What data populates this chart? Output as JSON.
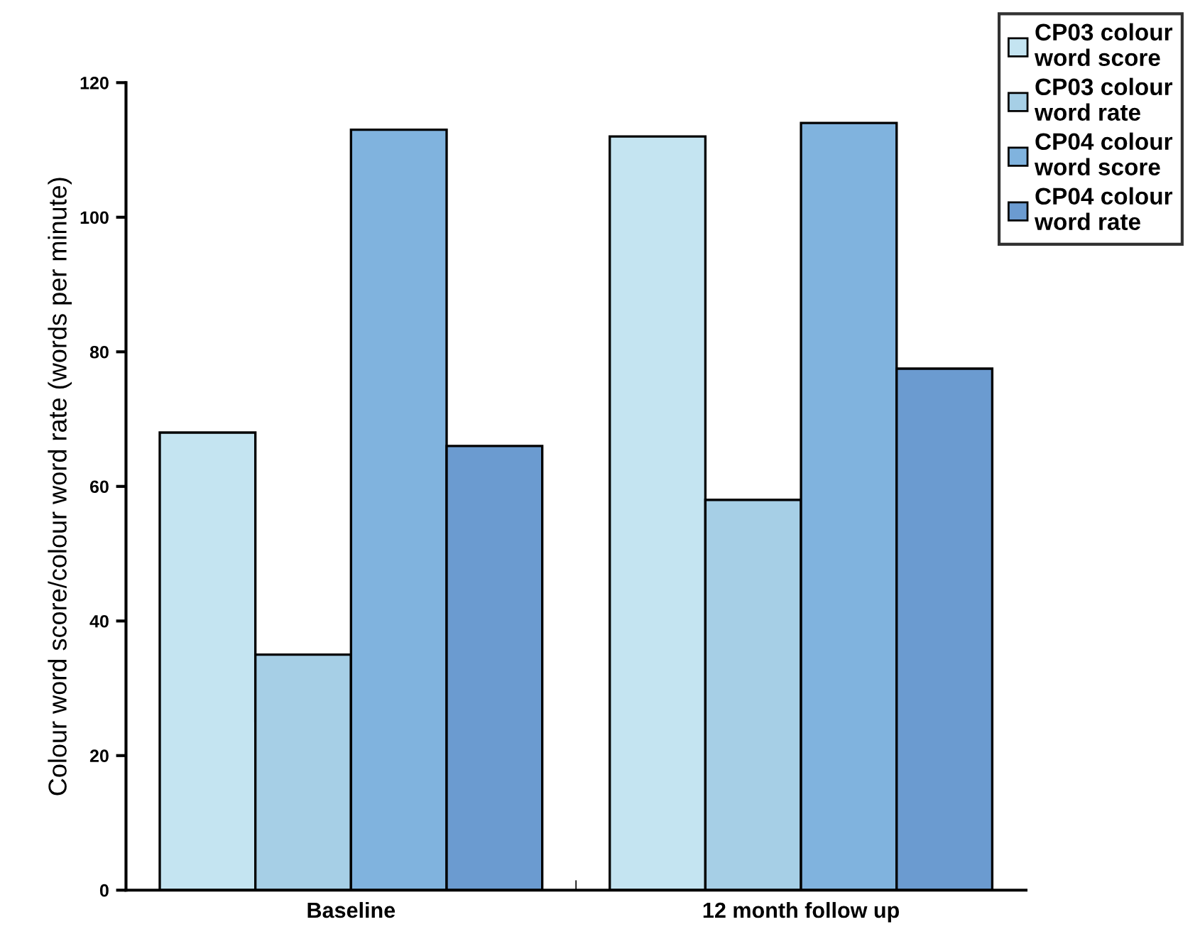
{
  "chart_data": {
    "type": "bar",
    "ylabel": "Colour word score/colour word rate (words per minute)",
    "categories": [
      "Baseline",
      "12 month follow up"
    ],
    "series": [
      {
        "name": "CP03 colour word score",
        "color": "#c4e4f1",
        "values": [
          68,
          112
        ]
      },
      {
        "name": "CP03 colour word rate",
        "color": "#a6cfe6",
        "values": [
          35,
          58
        ]
      },
      {
        "name": "CP04 colour word score",
        "color": "#80b3de",
        "values": [
          113,
          114
        ]
      },
      {
        "name": "CP04 colour word rate",
        "color": "#6b9bd0",
        "values": [
          66,
          77.5
        ]
      }
    ],
    "ylim": [
      0,
      120
    ],
    "yticks": [
      0,
      20,
      40,
      60,
      80,
      100,
      120
    ],
    "grid": false,
    "legend": "top right"
  }
}
